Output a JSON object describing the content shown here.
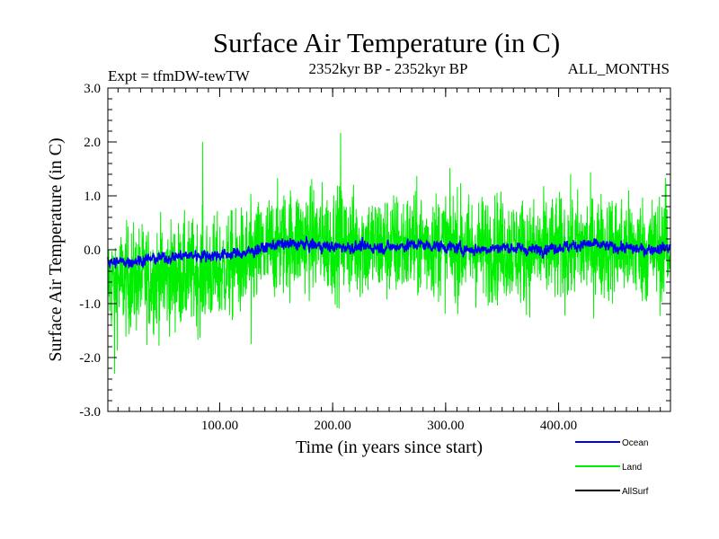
{
  "chart_data": {
    "type": "line",
    "title": "Surface Air Temperature (in C)",
    "subtitle_left": "Expt = tfmDW-tewTW",
    "subtitle_center": "2352kyr BP - 2352kyr BP",
    "subtitle_right": "ALL_MONTHS",
    "xlabel": "Time (in years since start)",
    "ylabel": "Surface Air Temperature (in C)",
    "xlim": [
      1,
      499
    ],
    "ylim": [
      -3.0,
      3.0
    ],
    "x_ticks": [
      100,
      200,
      300,
      400
    ],
    "x_tick_labels": [
      "100.00",
      "200.00",
      "300.00",
      "400.00"
    ],
    "y_ticks": [
      -3,
      -2,
      -1,
      0,
      1,
      2,
      3
    ],
    "y_tick_labels": [
      "-3.0",
      "-2.0",
      "-1.0",
      "0.0",
      "1.0",
      "2.0",
      "3.0"
    ],
    "grid": false,
    "legend_position": "bottom-right",
    "series": [
      {
        "name": "Land",
        "color": "#00ee00",
        "x": [
          1,
          25,
          50,
          75,
          100,
          125,
          150,
          175,
          200,
          225,
          250,
          275,
          300,
          325,
          350,
          375,
          400,
          425,
          450,
          475,
          499
        ],
        "mean": [
          -0.6,
          -0.55,
          -0.5,
          -0.45,
          -0.4,
          -0.2,
          0.1,
          0.2,
          0.15,
          0.1,
          0.05,
          0.1,
          0.1,
          0.0,
          0.05,
          -0.05,
          0.0,
          0.05,
          0.05,
          0.0,
          0.0
        ],
        "spread": 0.75,
        "peaks": [
          {
            "x": 7,
            "y": -2.3
          },
          {
            "x": 85,
            "y": 2.0
          },
          {
            "x": 207,
            "y": 2.17
          },
          {
            "x": 128,
            "y": -1.75
          },
          {
            "x": 495,
            "y": 1.2
          }
        ]
      },
      {
        "name": "Ocean",
        "color": "#0000ee",
        "x": [
          1,
          25,
          50,
          75,
          100,
          125,
          150,
          175,
          200,
          225,
          250,
          275,
          300,
          325,
          350,
          375,
          400,
          425,
          450,
          475,
          499
        ],
        "mean": [
          -0.25,
          -0.2,
          -0.15,
          -0.1,
          -0.1,
          -0.05,
          0.1,
          0.1,
          0.05,
          0.05,
          0.05,
          0.1,
          0.05,
          0.0,
          0.05,
          0.0,
          0.05,
          0.1,
          0.05,
          0.0,
          0.05
        ],
        "spread": 0.15
      },
      {
        "name": "AllSurf",
        "color": "#000000",
        "x": [],
        "mean": []
      }
    ]
  }
}
